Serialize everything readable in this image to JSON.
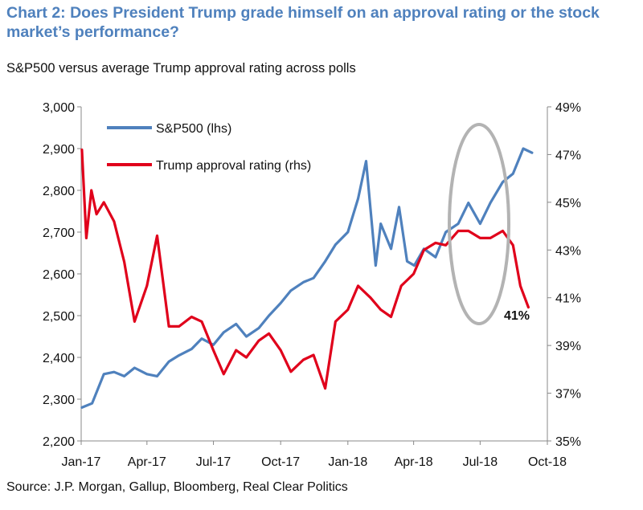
{
  "title": "Chart 2: Does President Trump grade himself on an approval rating or the stock market’s performance?",
  "subtitle": "S&P500 versus average Trump approval rating across polls",
  "source": "Source: J.P. Morgan, Gallup, Bloomberg, Real Clear Politics",
  "chart_data": {
    "type": "line",
    "title": "Chart 2: Does President Trump grade himself on an approval rating or the stock market’s performance?",
    "subtitle": "S&P500 versus average Trump approval rating across polls",
    "x_tick_labels": [
      "Jan-17",
      "Apr-17",
      "Jul-17",
      "Oct-17",
      "Jan-18",
      "Apr-18",
      "Jul-18",
      "Oct-18"
    ],
    "y_left": {
      "range": [
        2200,
        3000
      ],
      "ticks": [
        2200,
        2300,
        2400,
        2500,
        2600,
        2700,
        2800,
        2900,
        3000
      ],
      "tick_labels": [
        "2,200",
        "2,300",
        "2,400",
        "2,500",
        "2,600",
        "2,700",
        "2,800",
        "2,900",
        "3,000"
      ]
    },
    "y_right": {
      "range": [
        35,
        49
      ],
      "ticks": [
        35,
        37,
        39,
        41,
        43,
        45,
        47,
        49
      ],
      "tick_labels": [
        "35%",
        "37%",
        "39%",
        "41%",
        "43%",
        "45%",
        "47%",
        "49%"
      ]
    },
    "grid": false,
    "legend_position": "top-left",
    "series": [
      {
        "name": "S&P500 (lhs)",
        "axis": "left",
        "color": "#4f81bd",
        "x": [
          "2017-01-02",
          "2017-01-16",
          "2017-02-01",
          "2017-02-15",
          "2017-03-01",
          "2017-03-15",
          "2017-04-01",
          "2017-04-15",
          "2017-05-01",
          "2017-05-15",
          "2017-06-01",
          "2017-06-15",
          "2017-07-01",
          "2017-07-15",
          "2017-08-01",
          "2017-08-15",
          "2017-09-01",
          "2017-09-15",
          "2017-10-01",
          "2017-10-15",
          "2017-11-01",
          "2017-11-15",
          "2017-12-01",
          "2017-12-15",
          "2018-01-01",
          "2018-01-15",
          "2018-01-26",
          "2018-02-08",
          "2018-02-15",
          "2018-03-01",
          "2018-03-12",
          "2018-03-23",
          "2018-04-02",
          "2018-04-15",
          "2018-05-01",
          "2018-05-15",
          "2018-06-01",
          "2018-06-15",
          "2018-07-01",
          "2018-07-15",
          "2018-08-01",
          "2018-08-15",
          "2018-08-29",
          "2018-09-10"
        ],
        "y": [
          2280,
          2290,
          2360,
          2365,
          2355,
          2375,
          2360,
          2355,
          2390,
          2405,
          2420,
          2445,
          2430,
          2460,
          2480,
          2450,
          2470,
          2500,
          2530,
          2560,
          2580,
          2590,
          2630,
          2670,
          2700,
          2780,
          2870,
          2620,
          2720,
          2660,
          2760,
          2630,
          2620,
          2660,
          2640,
          2700,
          2720,
          2770,
          2720,
          2770,
          2820,
          2840,
          2900,
          2890
        ]
      },
      {
        "name": "Trump approval rating (rhs)",
        "axis": "right",
        "color": "#e0001b",
        "x": [
          "2017-01-02",
          "2017-01-08",
          "2017-01-15",
          "2017-01-22",
          "2017-02-01",
          "2017-02-15",
          "2017-03-01",
          "2017-03-15",
          "2017-04-01",
          "2017-04-15",
          "2017-05-01",
          "2017-05-15",
          "2017-06-01",
          "2017-06-15",
          "2017-07-01",
          "2017-07-15",
          "2017-08-01",
          "2017-08-15",
          "2017-09-01",
          "2017-09-15",
          "2017-10-01",
          "2017-10-15",
          "2017-11-01",
          "2017-11-15",
          "2017-12-01",
          "2017-12-15",
          "2018-01-01",
          "2018-01-15",
          "2018-02-01",
          "2018-02-15",
          "2018-03-01",
          "2018-03-15",
          "2018-04-01",
          "2018-04-15",
          "2018-05-01",
          "2018-05-15",
          "2018-06-01",
          "2018-06-15",
          "2018-07-01",
          "2018-07-15",
          "2018-08-01",
          "2018-08-15",
          "2018-08-25",
          "2018-09-05"
        ],
        "y": [
          47.2,
          43.5,
          45.5,
          44.5,
          45.0,
          44.2,
          42.5,
          40.0,
          41.5,
          43.6,
          39.8,
          39.8,
          40.2,
          40.0,
          38.8,
          37.8,
          38.8,
          38.5,
          39.2,
          39.5,
          38.8,
          37.9,
          38.4,
          38.6,
          37.2,
          40.0,
          40.5,
          41.5,
          41.0,
          40.5,
          40.2,
          41.5,
          42.0,
          43.0,
          43.3,
          43.2,
          43.8,
          43.8,
          43.5,
          43.5,
          43.8,
          43.2,
          41.5,
          40.6
        ]
      }
    ],
    "annotations": [
      {
        "text": "41%"
      }
    ]
  }
}
